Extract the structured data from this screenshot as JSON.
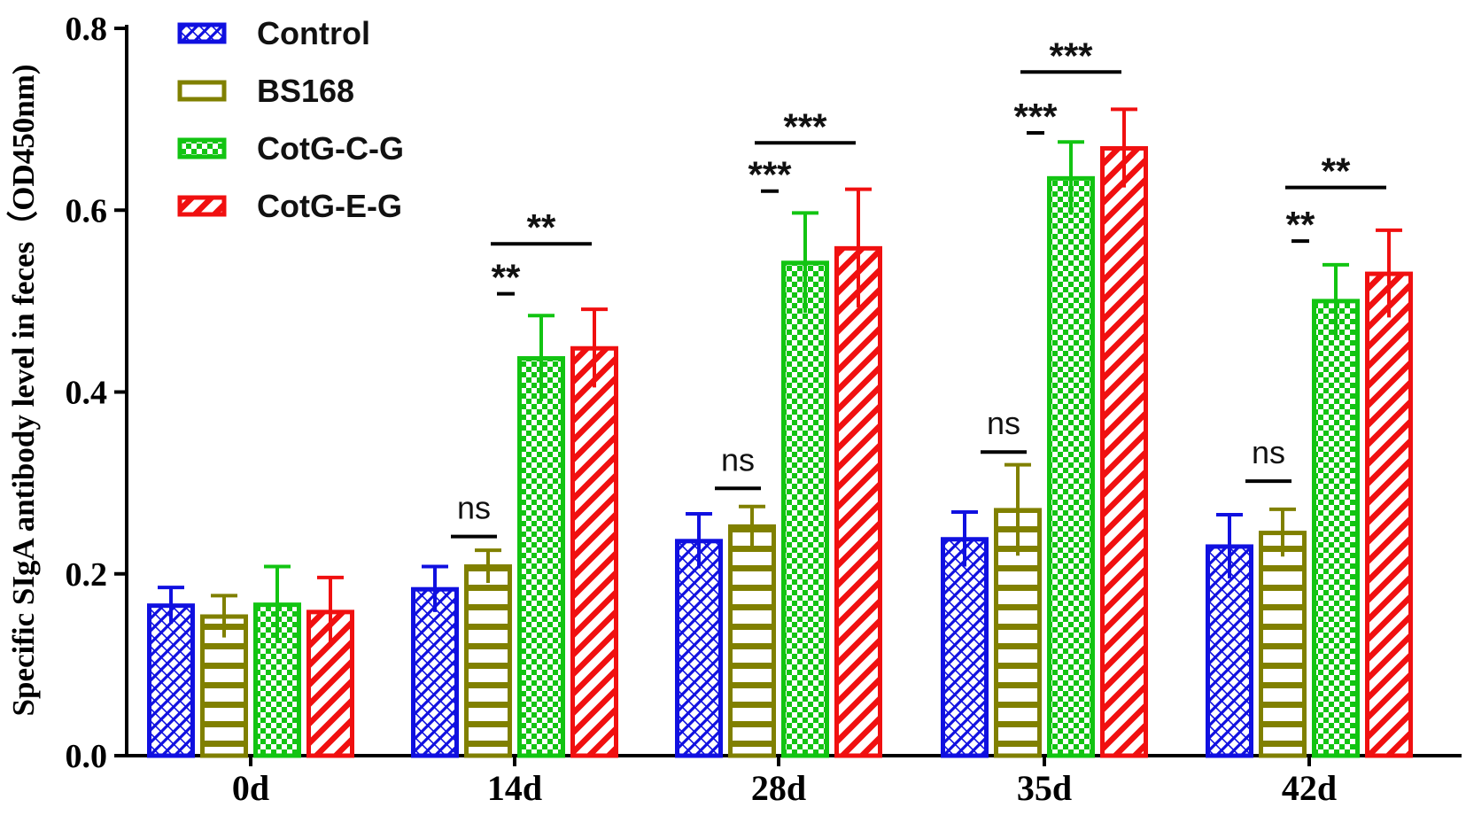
{
  "chart_data": {
    "type": "bar",
    "title": "",
    "xlabel": "",
    "ylabel": "Specific SIgA antibody level in feces（OD450nm)",
    "ylim": [
      0,
      0.8
    ],
    "yticks": [
      0.0,
      0.2,
      0.4,
      0.6,
      0.8
    ],
    "ytick_labels": [
      "0.0",
      "0.2",
      "0.4",
      "0.6",
      "0.8"
    ],
    "categories": [
      "0d",
      "14d",
      "28d",
      "35d",
      "42d"
    ],
    "legend_position": "top-left",
    "series": [
      {
        "name": "Control",
        "color": "#1010e0",
        "pattern": "diagonal-cross",
        "values": [
          0.165,
          0.183,
          0.236,
          0.238,
          0.23
        ],
        "errors": [
          0.02,
          0.025,
          0.03,
          0.03,
          0.035
        ]
      },
      {
        "name": "BS168",
        "color": "#808000",
        "pattern": "horizontal",
        "values": [
          0.153,
          0.208,
          0.252,
          0.27,
          0.245
        ],
        "errors": [
          0.023,
          0.018,
          0.022,
          0.05,
          0.026
        ]
      },
      {
        "name": "CotG-C-G",
        "color": "#12c412",
        "pattern": "checker",
        "values": [
          0.166,
          0.437,
          0.542,
          0.635,
          0.5
        ],
        "errors": [
          0.042,
          0.047,
          0.055,
          0.04,
          0.04
        ]
      },
      {
        "name": "CotG-E-G",
        "color": "#f01010",
        "pattern": "diagonal",
        "values": [
          0.158,
          0.448,
          0.558,
          0.668,
          0.53
        ],
        "errors": [
          0.038,
          0.043,
          0.065,
          0.043,
          0.048
        ]
      }
    ],
    "annotations": [
      {
        "category": "14d",
        "label": "ns",
        "from_series": 0,
        "to_series": 1,
        "level": 0.241,
        "row": 0
      },
      {
        "category": "14d",
        "label": "**",
        "from_series": 1,
        "to_series": 2,
        "level": 0.508,
        "row": 0
      },
      {
        "category": "14d",
        "label": "**",
        "from_series": 1,
        "to_series": 3,
        "level": 0.563,
        "row": 1
      },
      {
        "category": "28d",
        "label": "ns",
        "from_series": 0,
        "to_series": 1,
        "level": 0.294,
        "row": 0
      },
      {
        "category": "28d",
        "label": "***",
        "from_series": 1,
        "to_series": 2,
        "level": 0.621,
        "row": 0
      },
      {
        "category": "28d",
        "label": "***",
        "from_series": 1,
        "to_series": 3,
        "level": 0.674,
        "row": 1
      },
      {
        "category": "35d",
        "label": "ns",
        "from_series": 0,
        "to_series": 1,
        "level": 0.334,
        "row": 0
      },
      {
        "category": "35d",
        "label": "***",
        "from_series": 1,
        "to_series": 2,
        "level": 0.685,
        "row": 0
      },
      {
        "category": "35d",
        "label": "***",
        "from_series": 1,
        "to_series": 3,
        "level": 0.752,
        "row": 1
      },
      {
        "category": "42d",
        "label": "ns",
        "from_series": 0,
        "to_series": 1,
        "level": 0.302,
        "row": 0
      },
      {
        "category": "42d",
        "label": "**",
        "from_series": 1,
        "to_series": 2,
        "level": 0.566,
        "row": 0
      },
      {
        "category": "42d",
        "label": "**",
        "from_series": 1,
        "to_series": 3,
        "level": 0.625,
        "row": 1
      }
    ]
  }
}
